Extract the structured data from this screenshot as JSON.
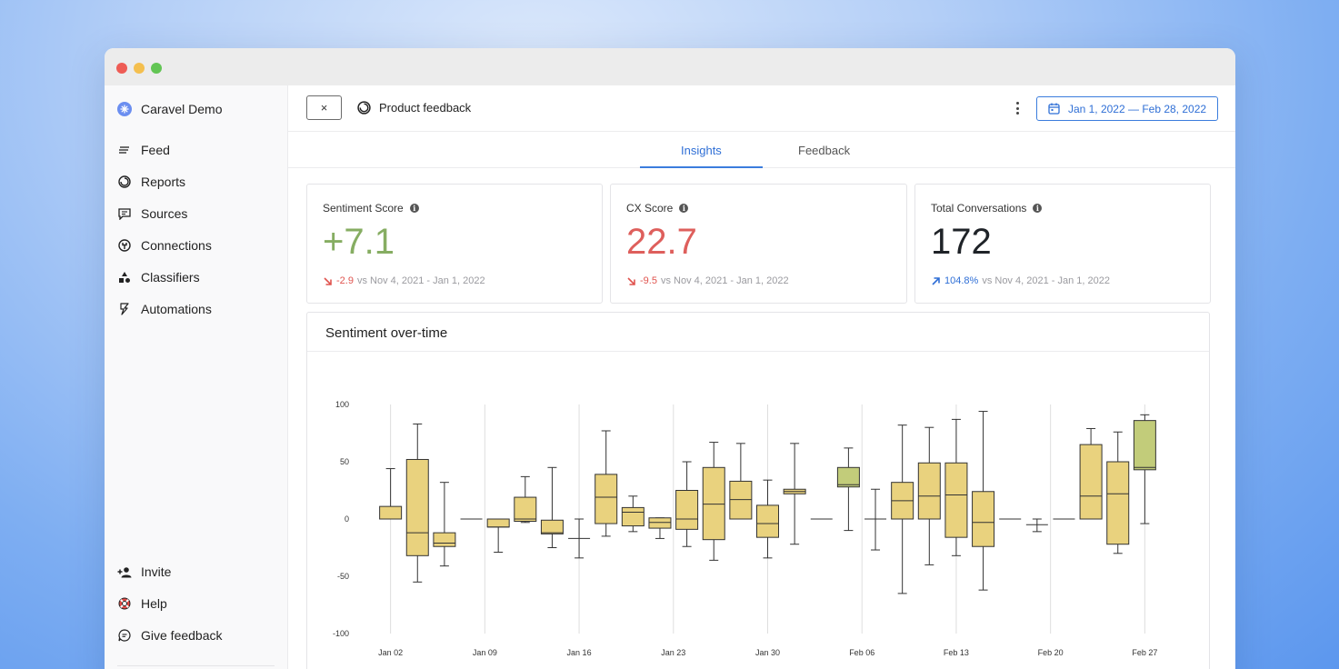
{
  "sidebar": {
    "brand": "Caravel Demo",
    "nav": [
      {
        "label": "Feed",
        "icon": "feed-icon"
      },
      {
        "label": "Reports",
        "icon": "reports-icon"
      },
      {
        "label": "Sources",
        "icon": "sources-icon"
      },
      {
        "label": "Connections",
        "icon": "connections-icon"
      },
      {
        "label": "Classifiers",
        "icon": "classifiers-icon"
      },
      {
        "label": "Automations",
        "icon": "automations-icon"
      }
    ],
    "bottom": [
      {
        "label": "Invite",
        "icon": "add-user-icon"
      },
      {
        "label": "Help",
        "icon": "lifebuoy-icon"
      },
      {
        "label": "Give feedback",
        "icon": "feedback-icon"
      }
    ]
  },
  "topbar": {
    "close_label": "×",
    "report_title": "Product feedback",
    "date_range": "Jan 1, 2022 — Feb 28, 2022"
  },
  "tabs": [
    {
      "label": "Insights",
      "active": true
    },
    {
      "label": "Feedback",
      "active": false
    }
  ],
  "metrics": [
    {
      "label": "Sentiment Score",
      "value": "+7.1",
      "color": "#86ad62",
      "delta": "-2.9",
      "delta_dir": "down",
      "delta_color": "#e0544f",
      "compare": "vs Nov 4, 2021 - Jan 1, 2022"
    },
    {
      "label": "CX Score",
      "value": "22.7",
      "color": "#de5f5c",
      "delta": "-9.5",
      "delta_dir": "down",
      "delta_color": "#e0544f",
      "compare": "vs Nov 4, 2021 - Jan 1, 2022"
    },
    {
      "label": "Total Conversations",
      "value": "172",
      "color": "#1f2328",
      "delta": "104.8%",
      "delta_dir": "up",
      "delta_color": "#2f6fd6",
      "compare": "vs Nov 4, 2021 - Jan 1, 2022"
    }
  ],
  "chart": {
    "title": "Sentiment over-time"
  },
  "chart_data": {
    "type": "box",
    "y_ticks": [
      "100",
      "50",
      "0",
      "-50",
      "-100"
    ],
    "ylim": [
      -100,
      100
    ],
    "x_ticks": [
      {
        "label": "Jan 02",
        "day": 2
      },
      {
        "label": "Jan 09",
        "day": 9
      },
      {
        "label": "Jan 16",
        "day": 16
      },
      {
        "label": "Jan 23",
        "day": 23
      },
      {
        "label": "Jan 30",
        "day": 30
      },
      {
        "label": "Feb 06",
        "day": 37
      },
      {
        "label": "Feb 13",
        "day": 44
      },
      {
        "label": "Feb 20",
        "day": 51
      },
      {
        "label": "Feb 27",
        "day": 58
      }
    ],
    "xlim": [
      0,
      60
    ],
    "grid_vertical": true,
    "colors": {
      "low": "#e9d27e",
      "high": "#c2cc7a",
      "stroke": "#333333",
      "grid": "#dedede"
    },
    "boxes": [
      {
        "day": 2,
        "min": 0,
        "q1": 0,
        "median": 0,
        "q3": 11,
        "max": 44
      },
      {
        "day": 4,
        "min": -55,
        "q1": -32,
        "median": -12,
        "q3": 52,
        "max": 83
      },
      {
        "day": 6,
        "min": -41,
        "q1": -24,
        "median": -21,
        "q3": -12,
        "max": 32
      },
      {
        "day": 8,
        "min": 0,
        "q1": 0,
        "median": 0,
        "q3": 0,
        "max": 0
      },
      {
        "day": 10,
        "min": -29,
        "q1": -7,
        "median": -7,
        "q3": 0,
        "max": 0
      },
      {
        "day": 12,
        "min": -3,
        "q1": -2,
        "median": 0,
        "q3": 19,
        "max": 37
      },
      {
        "day": 14,
        "min": -25,
        "q1": -13,
        "median": -12,
        "q3": -1,
        "max": 45
      },
      {
        "day": 16,
        "min": -34,
        "q1": -17,
        "median": -17,
        "q3": -17,
        "max": 0
      },
      {
        "day": 18,
        "min": -15,
        "q1": -4,
        "median": 19,
        "q3": 39,
        "max": 77
      },
      {
        "day": 20,
        "min": -11,
        "q1": -6,
        "median": 6,
        "q3": 10,
        "max": 20
      },
      {
        "day": 22,
        "min": -17,
        "q1": -8,
        "median": -3,
        "q3": 1,
        "max": 1
      },
      {
        "day": 24,
        "min": -24,
        "q1": -9,
        "median": 0,
        "q3": 25,
        "max": 50
      },
      {
        "day": 26,
        "min": -36,
        "q1": -18,
        "median": 13,
        "q3": 45,
        "max": 67
      },
      {
        "day": 28,
        "min": 0,
        "q1": 0,
        "median": 17,
        "q3": 33,
        "max": 66
      },
      {
        "day": 30,
        "min": -34,
        "q1": -16,
        "median": -4,
        "q3": 12,
        "max": 34
      },
      {
        "day": 32,
        "min": -22,
        "q1": 22,
        "median": 24,
        "q3": 26,
        "max": 66
      },
      {
        "day": 34,
        "min": 0,
        "q1": 0,
        "median": 0,
        "q3": 0,
        "max": 0
      },
      {
        "day": 36,
        "min": -10,
        "q1": 28,
        "median": 30,
        "q3": 45,
        "max": 62
      },
      {
        "day": 38,
        "min": -27,
        "q1": 0,
        "median": 0,
        "q3": 0,
        "max": 26
      },
      {
        "day": 40,
        "min": -65,
        "q1": 0,
        "median": 16,
        "q3": 32,
        "max": 82
      },
      {
        "day": 42,
        "min": -40,
        "q1": 0,
        "median": 20,
        "q3": 49,
        "max": 80
      },
      {
        "day": 44,
        "min": -32,
        "q1": -16,
        "median": 21,
        "q3": 49,
        "max": 87
      },
      {
        "day": 46,
        "min": -62,
        "q1": -24,
        "median": -3,
        "q3": 24,
        "max": 94
      },
      {
        "day": 48,
        "min": 0,
        "q1": 0,
        "median": 0,
        "q3": 0,
        "max": 0
      },
      {
        "day": 50,
        "min": -11,
        "q1": -5,
        "median": -5,
        "q3": -5,
        "max": 0
      },
      {
        "day": 52,
        "min": 0,
        "q1": 0,
        "median": 0,
        "q3": 0,
        "max": 0
      },
      {
        "day": 54,
        "min": 0,
        "q1": 0,
        "median": 20,
        "q3": 65,
        "max": 79
      },
      {
        "day": 56,
        "min": -30,
        "q1": -22,
        "median": 22,
        "q3": 50,
        "max": 76
      },
      {
        "day": 58,
        "min": -4,
        "q1": 43,
        "median": 45,
        "q3": 86,
        "max": 91
      }
    ]
  }
}
